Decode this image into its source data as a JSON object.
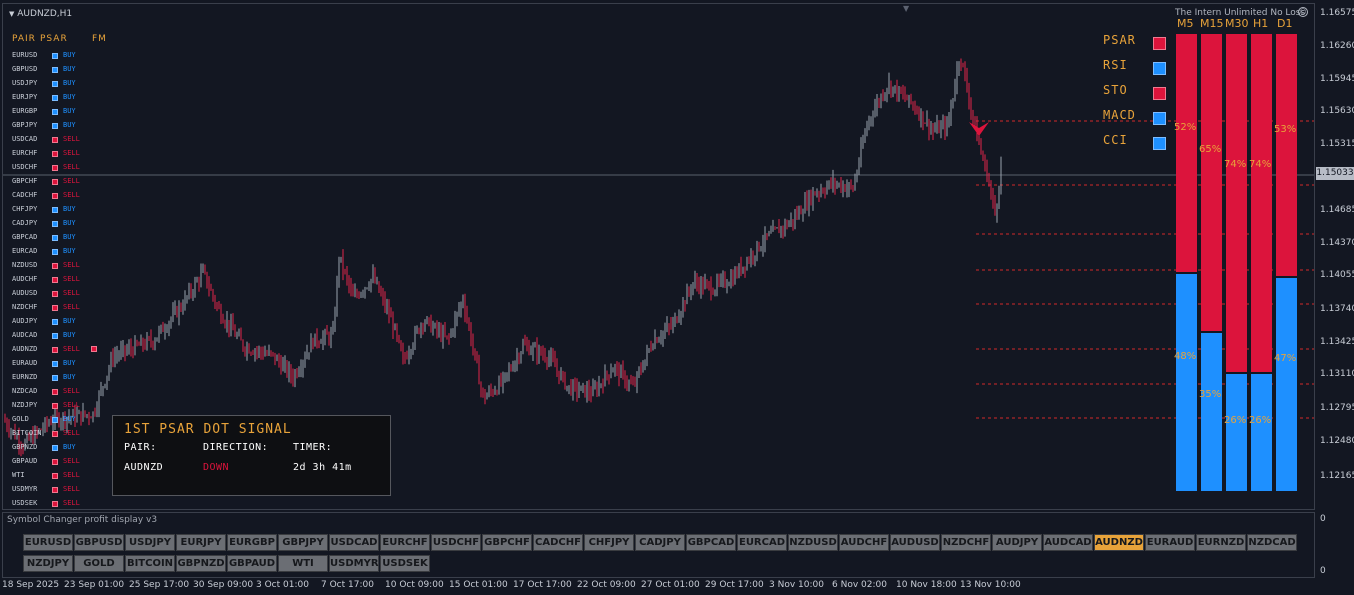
{
  "chart": {
    "symbol_label": "AUDNZD,H1",
    "ea_title": "The Intern Unlimited No Loss",
    "current_price": "1.15033",
    "price_ticks": [
      "1.16575",
      "1.16260",
      "1.15945",
      "1.15630",
      "1.15315",
      "1.14685",
      "1.14370",
      "1.14055",
      "1.13740",
      "1.13425",
      "1.13110",
      "1.12795",
      "1.12480",
      "1.12165"
    ],
    "time_ticks": [
      "18 Sep 2025",
      "23 Sep 01:00",
      "25 Sep 17:00",
      "30 Sep 09:00",
      "3 Oct 01:00",
      "7 Oct 17:00",
      "10 Oct 09:00",
      "15 Oct 01:00",
      "17 Oct 17:00",
      "22 Oct 09:00",
      "27 Oct 01:00",
      "29 Oct 17:00",
      "3 Nov 10:00",
      "6 Nov 02:00",
      "10 Nov 18:00",
      "13 Nov 10:00"
    ],
    "colors": {
      "bull": "#9aa3ae",
      "bear": "#e1254a",
      "background": "#131722",
      "grid_dash": "#d12a2a"
    }
  },
  "pairs_table": {
    "headers": {
      "pair": "PAIR",
      "psar": "PSAR",
      "fm": "FM"
    },
    "rows": [
      {
        "pair": "EURUSD",
        "dir": "BUY"
      },
      {
        "pair": "GBPUSD",
        "dir": "BUY"
      },
      {
        "pair": "USDJPY",
        "dir": "BUY"
      },
      {
        "pair": "EURJPY",
        "dir": "BUY"
      },
      {
        "pair": "EURGBP",
        "dir": "BUY"
      },
      {
        "pair": "GBPJPY",
        "dir": "BUY"
      },
      {
        "pair": "USDCAD",
        "dir": "SELL"
      },
      {
        "pair": "EURCHF",
        "dir": "SELL"
      },
      {
        "pair": "USDCHF",
        "dir": "SELL"
      },
      {
        "pair": "GBPCHF",
        "dir": "SELL"
      },
      {
        "pair": "CADCHF",
        "dir": "SELL"
      },
      {
        "pair": "CHFJPY",
        "dir": "BUY"
      },
      {
        "pair": "CADJPY",
        "dir": "BUY"
      },
      {
        "pair": "GBPCAD",
        "dir": "BUY"
      },
      {
        "pair": "EURCAD",
        "dir": "BUY"
      },
      {
        "pair": "NZDUSD",
        "dir": "SELL"
      },
      {
        "pair": "AUDCHF",
        "dir": "SELL"
      },
      {
        "pair": "AUDUSD",
        "dir": "SELL"
      },
      {
        "pair": "NZDCHF",
        "dir": "SELL"
      },
      {
        "pair": "AUDJPY",
        "dir": "BUY"
      },
      {
        "pair": "AUDCAD",
        "dir": "BUY"
      },
      {
        "pair": "AUDNZD",
        "dir": "SELL"
      },
      {
        "pair": "EURAUD",
        "dir": "BUY"
      },
      {
        "pair": "EURNZD",
        "dir": "BUY"
      },
      {
        "pair": "NZDCAD",
        "dir": "SELL"
      },
      {
        "pair": "NZDJPY",
        "dir": "SELL"
      },
      {
        "pair": "GOLD",
        "dir": "BUY"
      },
      {
        "pair": "BITCOIN",
        "dir": "SELL"
      },
      {
        "pair": "GBPNZD",
        "dir": "BUY"
      },
      {
        "pair": "GBPAUD",
        "dir": "SELL"
      },
      {
        "pair": "WTI",
        "dir": "SELL"
      },
      {
        "pair": "USDMYR",
        "dir": "SELL"
      },
      {
        "pair": "USDSEK",
        "dir": "SELL"
      }
    ],
    "buy_color": "#1e90ff",
    "sell_color": "#dc143c"
  },
  "signal_box": {
    "title": "1ST PSAR DOT SIGNAL",
    "pair_label": "PAIR:",
    "direction_label": "DIRECTION:",
    "timer_label": "TIMER:",
    "pair_value": "AUDNZD",
    "direction_value": "DOWN",
    "timer_value": "2d 3h 41m",
    "direction_color": "#dc143c"
  },
  "indicators": [
    {
      "name": "PSAR",
      "color": "#dc143c"
    },
    {
      "name": "RSI",
      "color": "#1e90ff"
    },
    {
      "name": "STO",
      "color": "#dc143c"
    },
    {
      "name": "MACD",
      "color": "#1e90ff"
    },
    {
      "name": "CCI",
      "color": "#1e90ff"
    }
  ],
  "strength_bars": [
    {
      "tf": "M5",
      "sell_pct": "52%",
      "buy_pct": "48%",
      "sell": 0.52
    },
    {
      "tf": "M15",
      "sell_pct": "65%",
      "buy_pct": "35%",
      "sell": 0.65
    },
    {
      "tf": "M30",
      "sell_pct": "74%",
      "buy_pct": "26%",
      "sell": 0.74
    },
    {
      "tf": "H1",
      "sell_pct": "74%",
      "buy_pct": "26%",
      "sell": 0.74
    },
    {
      "tf": "D1",
      "sell_pct": "53%",
      "buy_pct": "47%",
      "sell": 0.53
    }
  ],
  "bottom_panel": {
    "title": "Symbol Changer profit display v3",
    "axis_top": "0",
    "axis_bottom": "0",
    "row1": [
      "EURUSD",
      "GBPUSD",
      "USDJPY",
      "EURJPY",
      "EURGBP",
      "GBPJPY",
      "USDCAD",
      "EURCHF",
      "USDCHF",
      "GBPCHF",
      "CADCHF",
      "CHFJPY",
      "CADJPY",
      "GBPCAD",
      "EURCAD",
      "NZDUSD",
      "AUDCHF",
      "AUDUSD",
      "NZDCHF",
      "AUDJPY",
      "AUDCAD",
      "AUDNZD",
      "EURAUD",
      "EURNZD",
      "NZDCAD"
    ],
    "row2": [
      "NZDJPY",
      "GOLD",
      "BITCOIN",
      "GBPNZD",
      "GBPAUD",
      "WTI",
      "USDMYR",
      "USDSEK"
    ],
    "active": "AUDNZD"
  }
}
